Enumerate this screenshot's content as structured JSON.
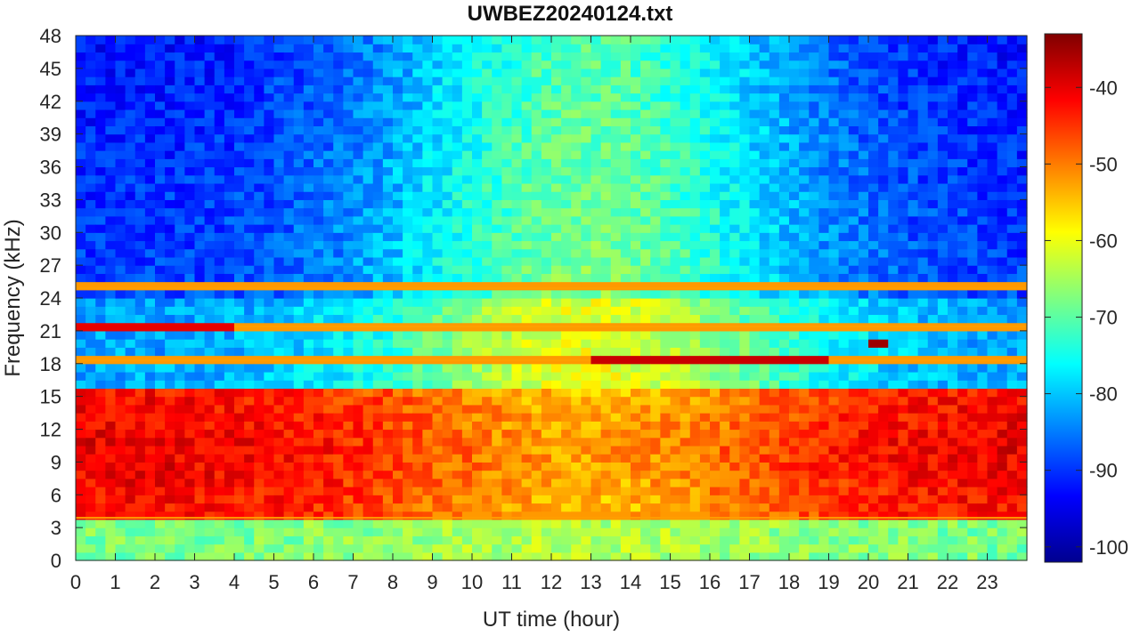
{
  "chart_data": {
    "type": "heatmap",
    "title": "UWBEZ20240124.txt",
    "xlabel": "UT time (hour)",
    "ylabel": "Frequency (kHz)",
    "xlim": [
      0,
      24
    ],
    "ylim": [
      0,
      48
    ],
    "x_ticks": [
      0,
      1,
      2,
      3,
      4,
      5,
      6,
      7,
      8,
      9,
      10,
      11,
      12,
      13,
      14,
      15,
      16,
      17,
      18,
      19,
      20,
      21,
      22,
      23
    ],
    "y_ticks": [
      0,
      3,
      6,
      9,
      12,
      15,
      18,
      21,
      24,
      27,
      30,
      33,
      36,
      39,
      42,
      45,
      48
    ],
    "colorbar": {
      "colormap": "jet",
      "range": [
        -102,
        -33
      ],
      "ticks": [
        -40,
        -50,
        -60,
        -70,
        -80,
        -90,
        -100
      ]
    },
    "grid": false,
    "background_level": {
      "low_freq_0_4kHz": -68,
      "mid_freq_4_16kHz_day": -52,
      "high_freq_night": -88
    },
    "persistent_lines_khz": [
      21.4,
      18.3,
      24.9,
      3.9
    ],
    "notable_features": [
      {
        "freq_khz": 18.3,
        "from_hour": 13,
        "to_hour": 19,
        "level": -38
      },
      {
        "freq_khz": 21.4,
        "from_hour": 0,
        "to_hour": 4,
        "level": -40
      },
      {
        "freq_khz": 20.0,
        "from_hour": 20,
        "to_hour": 20.4,
        "level": -35
      }
    ]
  }
}
